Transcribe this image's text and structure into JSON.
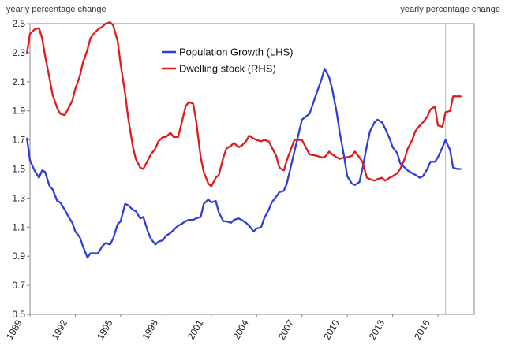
{
  "chart_data": {
    "type": "line",
    "left_axis_label": "yearly percentage change",
    "right_axis_label": "yearly percentage change",
    "ylim": [
      0.5,
      2.5
    ],
    "yticks": [
      0.5,
      0.7,
      0.9,
      1.1,
      1.3,
      1.5,
      1.7,
      1.9,
      2.1,
      2.3,
      2.5
    ],
    "ytick_labels": [
      "0.5",
      "0.7",
      "0.9",
      "1.1",
      "1.3",
      "1.5",
      "1.7",
      "1.9",
      "2.1",
      "2.3",
      "2.5"
    ],
    "xlim": [
      1989,
      2018.4
    ],
    "xticks": [
      1989,
      1992,
      1995,
      1998,
      2001,
      2004,
      2007,
      2010,
      2013,
      2016
    ],
    "xtick_labels": [
      "1989",
      "1992",
      "1995",
      "1998",
      "2001",
      "2004",
      "2007",
      "2010",
      "2013",
      "2016"
    ],
    "vertical_marker_x": 2016.5,
    "legend_position": "top-center",
    "grid": false,
    "series": [
      {
        "name": "Population Growth (LHS)",
        "color": "#2f3fd6",
        "x": [
          1988.8,
          1989.0,
          1989.3,
          1989.6,
          1989.8,
          1990.0,
          1990.3,
          1990.5,
          1990.8,
          1991.0,
          1991.3,
          1991.5,
          1991.8,
          1992.0,
          1992.3,
          1992.5,
          1992.8,
          1993.0,
          1993.3,
          1993.5,
          1993.8,
          1994.0,
          1994.3,
          1994.5,
          1994.8,
          1995.0,
          1995.3,
          1995.5,
          1995.8,
          1996.0,
          1996.3,
          1996.5,
          1996.8,
          1997.0,
          1997.3,
          1997.5,
          1997.8,
          1998.0,
          1998.3,
          1998.5,
          1998.8,
          1999.0,
          1999.3,
          1999.5,
          1999.8,
          2000.0,
          2000.3,
          2000.5,
          2000.8,
          2001.0,
          2001.3,
          2001.5,
          2001.8,
          2002.0,
          2002.3,
          2002.5,
          2002.8,
          2003.0,
          2003.3,
          2003.5,
          2003.8,
          2004.0,
          2004.3,
          2004.5,
          2004.8,
          2005.0,
          2005.3,
          2005.5,
          2005.8,
          2006.0,
          2006.5,
          2007.0,
          2007.5,
          2008.0,
          2008.3,
          2008.5,
          2008.8,
          2009.0,
          2009.3,
          2009.5,
          2009.8,
          2010.0,
          2010.3,
          2010.5,
          2010.8,
          2011.0,
          2011.3,
          2011.5,
          2011.8,
          2012.0,
          2012.3,
          2012.5,
          2012.8,
          2013.0,
          2013.3,
          2013.5,
          2013.8,
          2014.0,
          2014.3,
          2014.5,
          2014.8,
          2015.0,
          2015.3,
          2015.5,
          2015.8,
          2016.0,
          2016.3,
          2016.5,
          2016.8,
          2017.0,
          2017.3,
          2017.5,
          2017.8
        ],
        "values": [
          1.71,
          1.56,
          1.49,
          1.44,
          1.49,
          1.48,
          1.38,
          1.36,
          1.28,
          1.27,
          1.22,
          1.18,
          1.13,
          1.07,
          1.03,
          0.97,
          0.89,
          0.92,
          0.92,
          0.92,
          0.97,
          0.99,
          0.98,
          1.02,
          1.12,
          1.14,
          1.26,
          1.25,
          1.22,
          1.21,
          1.16,
          1.17,
          1.07,
          1.02,
          0.98,
          1.0,
          1.01,
          1.04,
          1.06,
          1.08,
          1.11,
          1.12,
          1.14,
          1.15,
          1.15,
          1.16,
          1.17,
          1.26,
          1.29,
          1.27,
          1.28,
          1.2,
          1.14,
          1.14,
          1.13,
          1.15,
          1.16,
          1.15,
          1.13,
          1.11,
          1.07,
          1.09,
          1.1,
          1.16,
          1.22,
          1.27,
          1.31,
          1.34,
          1.35,
          1.4,
          1.62,
          1.84,
          1.88,
          2.03,
          2.12,
          2.19,
          2.13,
          2.05,
          1.89,
          1.75,
          1.58,
          1.45,
          1.4,
          1.39,
          1.41,
          1.5,
          1.66,
          1.76,
          1.82,
          1.84,
          1.82,
          1.78,
          1.71,
          1.65,
          1.61,
          1.54,
          1.51,
          1.49,
          1.47,
          1.46,
          1.44,
          1.45,
          1.5,
          1.55,
          1.55,
          1.58,
          1.65,
          1.7,
          1.63,
          1.51,
          1.5,
          1.5,
          null
        ]
      },
      {
        "name": "Dwelling stock (RHS)",
        "color": "#e01b1b",
        "x": [
          1988.8,
          1989.0,
          1989.3,
          1989.6,
          1989.8,
          1990.0,
          1990.3,
          1990.5,
          1990.8,
          1991.0,
          1991.3,
          1991.5,
          1991.8,
          1992.0,
          1992.3,
          1992.5,
          1992.8,
          1993.0,
          1993.3,
          1993.5,
          1993.8,
          1994.0,
          1994.3,
          1994.5,
          1994.8,
          1995.0,
          1995.3,
          1995.5,
          1995.8,
          1996.0,
          1996.3,
          1996.5,
          1996.8,
          1997.0,
          1997.3,
          1997.5,
          1997.8,
          1998.0,
          1998.3,
          1998.5,
          1998.8,
          1999.0,
          1999.3,
          1999.5,
          1999.8,
          2000.0,
          2000.3,
          2000.5,
          2000.8,
          2001.0,
          2001.3,
          2001.5,
          2001.8,
          2002.0,
          2002.3,
          2002.5,
          2002.8,
          2003.0,
          2003.3,
          2003.5,
          2003.8,
          2004.0,
          2004.3,
          2004.5,
          2004.8,
          2005.0,
          2005.3,
          2005.5,
          2005.8,
          2006.0,
          2006.5,
          2007.0,
          2007.5,
          2008.0,
          2008.3,
          2008.5,
          2008.8,
          2009.0,
          2009.3,
          2009.5,
          2009.8,
          2010.0,
          2010.3,
          2010.5,
          2010.8,
          2011.0,
          2011.3,
          2011.5,
          2011.8,
          2012.0,
          2012.3,
          2012.5,
          2012.8,
          2013.0,
          2013.3,
          2013.5,
          2013.8,
          2014.0,
          2014.3,
          2014.5,
          2014.8,
          2015.0,
          2015.3,
          2015.5,
          2015.8,
          2016.0,
          2016.3,
          2016.5,
          2016.8,
          2017.0,
          2017.3,
          2017.5,
          2017.8
        ],
        "values": [
          2.3,
          2.43,
          2.46,
          2.47,
          2.4,
          2.28,
          2.12,
          2.01,
          1.92,
          1.88,
          1.87,
          1.91,
          1.97,
          2.05,
          2.14,
          2.23,
          2.32,
          2.4,
          2.44,
          2.46,
          2.48,
          2.5,
          2.51,
          2.49,
          2.38,
          2.22,
          2.02,
          1.85,
          1.66,
          1.57,
          1.51,
          1.5,
          1.56,
          1.6,
          1.64,
          1.69,
          1.72,
          1.72,
          1.75,
          1.72,
          1.72,
          1.8,
          1.93,
          1.96,
          1.95,
          1.83,
          1.58,
          1.48,
          1.4,
          1.38,
          1.44,
          1.46,
          1.58,
          1.64,
          1.66,
          1.68,
          1.65,
          1.66,
          1.69,
          1.73,
          1.71,
          1.7,
          1.69,
          1.7,
          1.69,
          1.65,
          1.59,
          1.51,
          1.49,
          1.56,
          1.7,
          1.7,
          1.6,
          1.59,
          1.58,
          1.58,
          1.62,
          1.6,
          1.58,
          1.57,
          1.58,
          1.58,
          1.59,
          1.62,
          1.58,
          1.55,
          1.44,
          1.43,
          1.42,
          1.43,
          1.44,
          1.42,
          1.44,
          1.45,
          1.47,
          1.5,
          1.57,
          1.64,
          1.7,
          1.76,
          1.8,
          1.82,
          1.86,
          1.91,
          1.93,
          1.8,
          1.79,
          1.89,
          1.9,
          2.0,
          2.0,
          2.0,
          null
        ]
      }
    ]
  }
}
